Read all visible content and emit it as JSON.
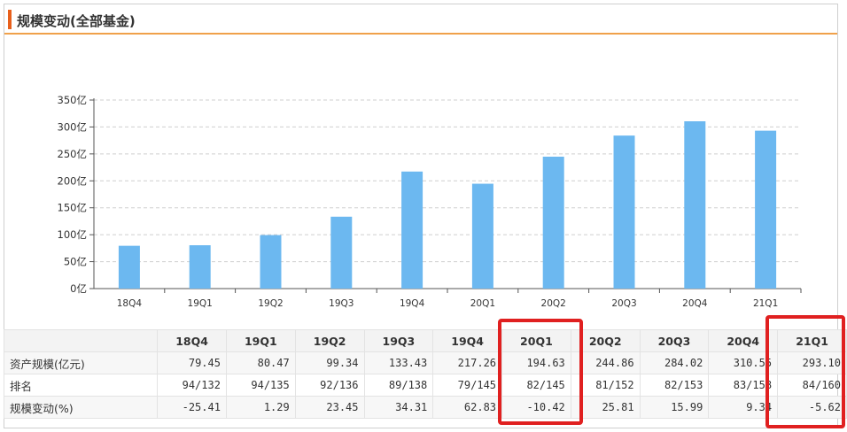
{
  "header": {
    "title": "规模变动(全部基金)"
  },
  "colors": {
    "bar": "#6cb8f0",
    "accent": "#e8601c",
    "highlight": "#e02020"
  },
  "chart_data": {
    "type": "bar",
    "categories": [
      "18Q4",
      "19Q1",
      "19Q2",
      "19Q3",
      "19Q4",
      "20Q1",
      "20Q2",
      "20Q3",
      "20Q4",
      "21Q1"
    ],
    "values": [
      79.45,
      80.47,
      99.34,
      133.43,
      217.26,
      194.63,
      244.86,
      284.02,
      310.55,
      293.1
    ],
    "ylim": [
      0,
      350
    ],
    "ytick_values": [
      0,
      50,
      100,
      150,
      200,
      250,
      300,
      350
    ],
    "ytick_labels": [
      "0亿",
      "50亿",
      "100亿",
      "150亿",
      "200亿",
      "250亿",
      "300亿",
      "350亿"
    ],
    "grid": true
  },
  "table": {
    "headers": [
      "",
      "18Q4",
      "19Q1",
      "19Q2",
      "19Q3",
      "19Q4",
      "20Q1",
      "20Q2",
      "20Q3",
      "20Q4",
      "21Q1"
    ],
    "rows": [
      {
        "label": "资产规模(亿元)",
        "cells": [
          "79.45",
          "80.47",
          "99.34",
          "133.43",
          "217.26",
          "194.63",
          "244.86",
          "284.02",
          "310.55",
          "293.10"
        ]
      },
      {
        "label": "排名",
        "cells": [
          "94/132",
          "94/135",
          "92/136",
          "89/138",
          "79/145",
          "82/145",
          "81/152",
          "82/153",
          "83/158",
          "84/160"
        ]
      },
      {
        "label": "规模变动(%)",
        "cells": [
          "-25.41",
          "1.29",
          "23.45",
          "34.31",
          "62.83",
          "-10.42",
          "25.81",
          "15.99",
          "9.34",
          "-5.62"
        ]
      }
    ]
  },
  "highlighted_columns": [
    "20Q1",
    "21Q1"
  ]
}
